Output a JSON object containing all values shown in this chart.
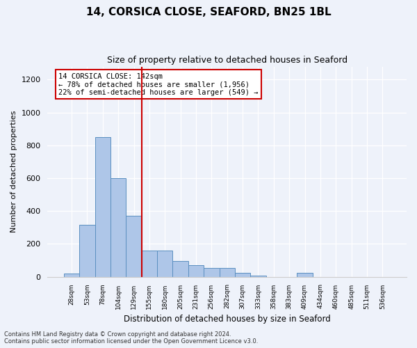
{
  "title1": "14, CORSICA CLOSE, SEAFORD, BN25 1BL",
  "title2": "Size of property relative to detached houses in Seaford",
  "xlabel": "Distribution of detached houses by size in Seaford",
  "ylabel": "Number of detached properties",
  "bar_labels": [
    "28sqm",
    "53sqm",
    "78sqm",
    "104sqm",
    "129sqm",
    "155sqm",
    "180sqm",
    "205sqm",
    "231sqm",
    "256sqm",
    "282sqm",
    "307sqm",
    "333sqm",
    "358sqm",
    "383sqm",
    "409sqm",
    "434sqm",
    "460sqm",
    "485sqm",
    "511sqm",
    "536sqm"
  ],
  "bar_values": [
    20,
    315,
    850,
    600,
    370,
    160,
    160,
    95,
    70,
    55,
    55,
    25,
    5,
    0,
    0,
    25,
    0,
    0,
    0,
    0,
    0
  ],
  "bar_color": "#aec6e8",
  "bar_edge_color": "#5a8fc0",
  "vline_color": "#cc0000",
  "vline_pos": 4.5,
  "annotation_text": "14 CORSICA CLOSE: 142sqm\n← 78% of detached houses are smaller (1,956)\n22% of semi-detached houses are larger (549) →",
  "annotation_box_color": "#ffffff",
  "annotation_box_edge": "#cc0000",
  "ylim": [
    0,
    1280
  ],
  "yticks": [
    0,
    200,
    400,
    600,
    800,
    1000,
    1200
  ],
  "footnote1": "Contains HM Land Registry data © Crown copyright and database right 2024.",
  "footnote2": "Contains public sector information licensed under the Open Government Licence v3.0.",
  "bg_color": "#eef2fa",
  "plot_bg_color": "#eef2fa"
}
